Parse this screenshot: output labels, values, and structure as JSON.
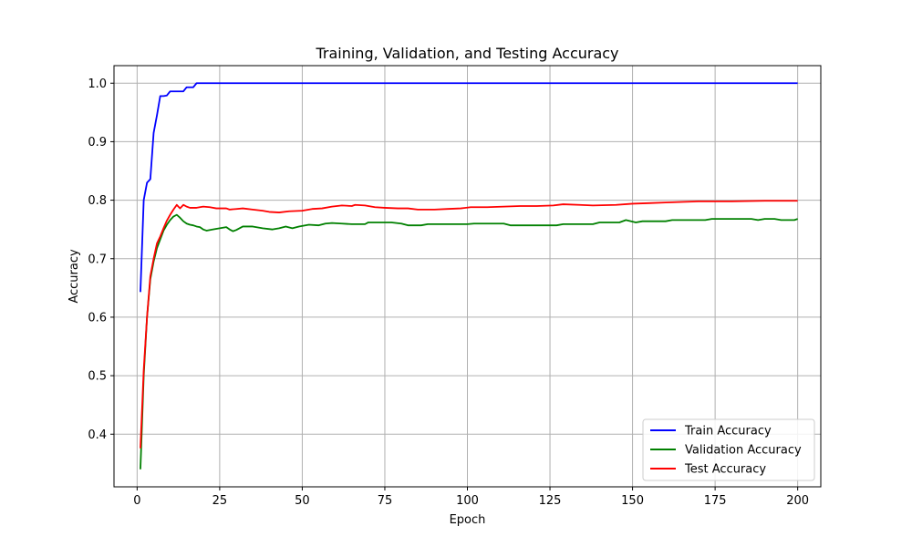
{
  "chart_data": {
    "type": "line",
    "title": "Training, Validation, and Testing Accuracy",
    "xlabel": "Epoch",
    "ylabel": "Accuracy",
    "xlim": [
      -7,
      207
    ],
    "ylim": [
      0.31,
      1.03
    ],
    "xticks": [
      0,
      25,
      50,
      75,
      100,
      125,
      150,
      175,
      200
    ],
    "yticks": [
      0.4,
      0.5,
      0.6,
      0.7,
      0.8,
      0.9,
      1.0
    ],
    "ytick_labels": [
      "0.4",
      "0.5",
      "0.6",
      "0.7",
      "0.8",
      "0.9",
      "1.0"
    ],
    "grid": true,
    "legend_position": "bottom-right",
    "series": [
      {
        "name": "Train Accuracy",
        "color": "#0000ff",
        "points": [
          [
            1,
            0.643
          ],
          [
            2,
            0.8
          ],
          [
            3,
            0.83
          ],
          [
            4,
            0.836
          ],
          [
            5,
            0.915
          ],
          [
            6,
            0.945
          ],
          [
            7,
            0.978
          ],
          [
            8,
            0.978
          ],
          [
            9,
            0.979
          ],
          [
            10,
            0.986
          ],
          [
            11,
            0.986
          ],
          [
            12,
            0.986
          ],
          [
            13,
            0.986
          ],
          [
            14,
            0.986
          ],
          [
            15,
            0.993
          ],
          [
            16,
            0.993
          ],
          [
            17,
            0.993
          ],
          [
            18,
            1.0
          ],
          [
            200,
            1.0
          ]
        ]
      },
      {
        "name": "Validation Accuracy",
        "color": "#008000",
        "points": [
          [
            1,
            0.34
          ],
          [
            2,
            0.5
          ],
          [
            3,
            0.6
          ],
          [
            4,
            0.665
          ],
          [
            5,
            0.695
          ],
          [
            6,
            0.718
          ],
          [
            7,
            0.733
          ],
          [
            8,
            0.748
          ],
          [
            9,
            0.758
          ],
          [
            10,
            0.766
          ],
          [
            11,
            0.772
          ],
          [
            12,
            0.775
          ],
          [
            13,
            0.77
          ],
          [
            14,
            0.764
          ],
          [
            15,
            0.76
          ],
          [
            16,
            0.758
          ],
          [
            17,
            0.757
          ],
          [
            18,
            0.755
          ],
          [
            19,
            0.754
          ],
          [
            20,
            0.75
          ],
          [
            21,
            0.748
          ],
          [
            23,
            0.75
          ],
          [
            25,
            0.752
          ],
          [
            27,
            0.754
          ],
          [
            28,
            0.75
          ],
          [
            29,
            0.747
          ],
          [
            30,
            0.749
          ],
          [
            32,
            0.755
          ],
          [
            35,
            0.755
          ],
          [
            38,
            0.752
          ],
          [
            41,
            0.75
          ],
          [
            43,
            0.752
          ],
          [
            45,
            0.755
          ],
          [
            47,
            0.752
          ],
          [
            49,
            0.755
          ],
          [
            52,
            0.758
          ],
          [
            55,
            0.757
          ],
          [
            57,
            0.76
          ],
          [
            59,
            0.761
          ],
          [
            62,
            0.76
          ],
          [
            65,
            0.759
          ],
          [
            69,
            0.759
          ],
          [
            70,
            0.762
          ],
          [
            77,
            0.762
          ],
          [
            80,
            0.76
          ],
          [
            82,
            0.757
          ],
          [
            86,
            0.757
          ],
          [
            88,
            0.759
          ],
          [
            100,
            0.759
          ],
          [
            102,
            0.76
          ],
          [
            111,
            0.76
          ],
          [
            113,
            0.757
          ],
          [
            127,
            0.757
          ],
          [
            129,
            0.759
          ],
          [
            138,
            0.759
          ],
          [
            140,
            0.762
          ],
          [
            146,
            0.762
          ],
          [
            148,
            0.766
          ],
          [
            151,
            0.762
          ],
          [
            153,
            0.764
          ],
          [
            160,
            0.764
          ],
          [
            162,
            0.766
          ],
          [
            172,
            0.766
          ],
          [
            174,
            0.768
          ],
          [
            186,
            0.768
          ],
          [
            188,
            0.766
          ],
          [
            190,
            0.768
          ],
          [
            193,
            0.768
          ],
          [
            195,
            0.766
          ],
          [
            199,
            0.766
          ],
          [
            200,
            0.768
          ]
        ]
      },
      {
        "name": "Test Accuracy",
        "color": "#ff0000",
        "points": [
          [
            1,
            0.376
          ],
          [
            2,
            0.51
          ],
          [
            3,
            0.6
          ],
          [
            4,
            0.67
          ],
          [
            5,
            0.7
          ],
          [
            6,
            0.726
          ],
          [
            7,
            0.738
          ],
          [
            8,
            0.752
          ],
          [
            9,
            0.765
          ],
          [
            10,
            0.775
          ],
          [
            11,
            0.784
          ],
          [
            12,
            0.792
          ],
          [
            13,
            0.786
          ],
          [
            14,
            0.792
          ],
          [
            15,
            0.789
          ],
          [
            16,
            0.787
          ],
          [
            18,
            0.787
          ],
          [
            20,
            0.789
          ],
          [
            22,
            0.788
          ],
          [
            24,
            0.786
          ],
          [
            27,
            0.786
          ],
          [
            28,
            0.784
          ],
          [
            30,
            0.785
          ],
          [
            32,
            0.786
          ],
          [
            35,
            0.784
          ],
          [
            38,
            0.782
          ],
          [
            40,
            0.78
          ],
          [
            43,
            0.779
          ],
          [
            46,
            0.781
          ],
          [
            50,
            0.782
          ],
          [
            53,
            0.785
          ],
          [
            56,
            0.786
          ],
          [
            59,
            0.789
          ],
          [
            62,
            0.791
          ],
          [
            65,
            0.79
          ],
          [
            66,
            0.792
          ],
          [
            69,
            0.791
          ],
          [
            72,
            0.788
          ],
          [
            75,
            0.787
          ],
          [
            79,
            0.786
          ],
          [
            82,
            0.786
          ],
          [
            85,
            0.784
          ],
          [
            90,
            0.784
          ],
          [
            94,
            0.785
          ],
          [
            98,
            0.786
          ],
          [
            101,
            0.788
          ],
          [
            106,
            0.788
          ],
          [
            111,
            0.789
          ],
          [
            116,
            0.79
          ],
          [
            121,
            0.79
          ],
          [
            126,
            0.791
          ],
          [
            129,
            0.793
          ],
          [
            134,
            0.792
          ],
          [
            138,
            0.791
          ],
          [
            145,
            0.792
          ],
          [
            150,
            0.794
          ],
          [
            155,
            0.795
          ],
          [
            160,
            0.796
          ],
          [
            165,
            0.797
          ],
          [
            170,
            0.798
          ],
          [
            180,
            0.798
          ],
          [
            190,
            0.799
          ],
          [
            200,
            0.799
          ]
        ]
      }
    ]
  }
}
